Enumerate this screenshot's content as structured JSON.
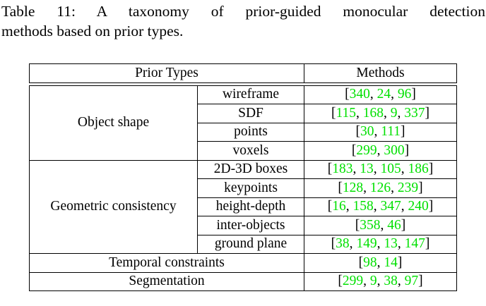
{
  "caption": {
    "line1": "Table 11: A taxonomy of prior-guided monocular detection",
    "line2": "methods based on prior types."
  },
  "colors": {
    "citation_green": "#00e000",
    "text": "#000000",
    "border": "#000000",
    "background": "#ffffff"
  },
  "table": {
    "header": {
      "prior_types": "Prior Types",
      "methods": "Methods"
    },
    "sections": [
      {
        "category": "Object shape",
        "subrows": [
          {
            "label": "wireframe",
            "citations": [
              340,
              24,
              96
            ]
          },
          {
            "label": "SDF",
            "citations": [
              115,
              168,
              9,
              337
            ]
          },
          {
            "label": "points",
            "citations": [
              30,
              111
            ]
          },
          {
            "label": "voxels",
            "citations": [
              299,
              300
            ]
          }
        ]
      },
      {
        "category": "Geometric consistency",
        "subrows": [
          {
            "label": "2D-3D boxes",
            "citations": [
              183,
              13,
              105,
              186
            ]
          },
          {
            "label": "keypoints",
            "citations": [
              128,
              126,
              239
            ]
          },
          {
            "label": "height-depth",
            "citations": [
              16,
              158,
              347,
              240
            ]
          },
          {
            "label": "inter-objects",
            "citations": [
              358,
              46
            ]
          },
          {
            "label": "ground plane",
            "citations": [
              38,
              149,
              13,
              147
            ]
          }
        ]
      },
      {
        "category": "Temporal constraints",
        "citations": [
          98,
          14
        ]
      },
      {
        "category": "Segmentation",
        "citations": [
          299,
          9,
          38,
          97
        ]
      }
    ]
  }
}
